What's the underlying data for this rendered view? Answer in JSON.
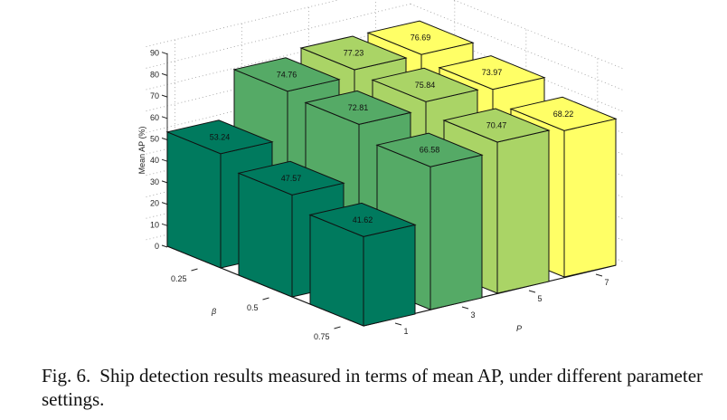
{
  "figure": {
    "number_label": "Fig. 6.",
    "caption": "Ship detection results measured in terms of mean AP, under different parameter settings."
  },
  "chart_data": {
    "type": "bar3d",
    "title": "",
    "zlabel": "Mean AP (%)",
    "xlabel": "P",
    "ylabel": "β",
    "zlim": [
      0,
      90
    ],
    "zticks": [
      0,
      10,
      20,
      30,
      40,
      50,
      60,
      70,
      80,
      90
    ],
    "grid": true,
    "categories_P": [
      "1",
      "3",
      "5",
      "7"
    ],
    "categories_beta": [
      "0.25",
      "0.5",
      "0.75"
    ],
    "series": [
      {
        "name": "P=1",
        "color": "#007A5E",
        "values": [
          53.24,
          47.57,
          41.62
        ]
      },
      {
        "name": "P=3",
        "color": "#55AA66",
        "values": [
          74.76,
          72.81,
          66.58
        ]
      },
      {
        "name": "P=5",
        "color": "#AAD466",
        "values": [
          77.23,
          75.84,
          70.47
        ]
      },
      {
        "name": "P=7",
        "color": "#FFFF66",
        "values": [
          76.69,
          73.97,
          68.22
        ]
      }
    ],
    "value_labels": [
      [
        "53.24",
        "47.57",
        "41.62"
      ],
      [
        "74.76",
        "72.81",
        "66.58"
      ],
      [
        "77.23",
        "75.84",
        "70.47"
      ],
      [
        "76.69",
        "73.97",
        "68.22"
      ]
    ]
  }
}
